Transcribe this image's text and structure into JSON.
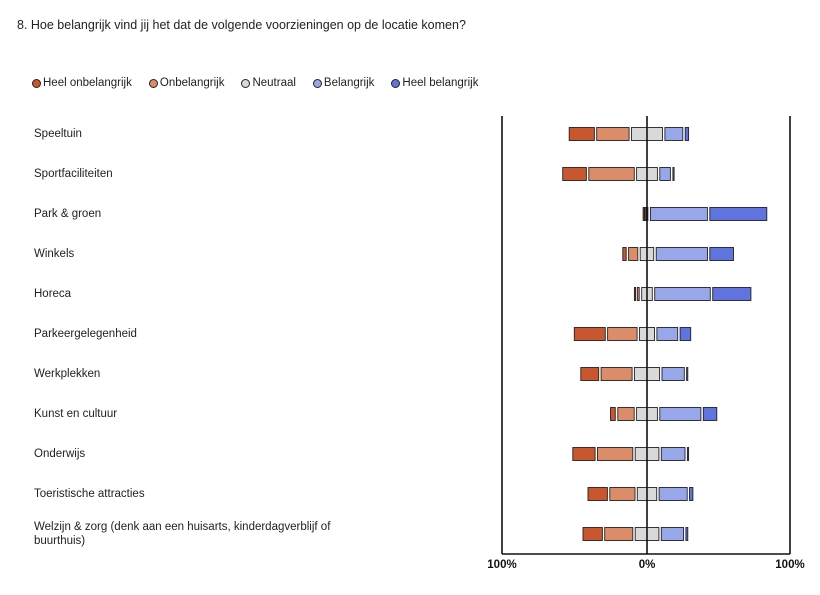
{
  "question": "8. Hoe belangrijk vind jij het dat de volgende voorzieningen op de locatie komen?",
  "chart_data": {
    "type": "bar",
    "orientation": "horizontal-diverging",
    "categories": [
      "Speeltuin",
      "Sportfaciliteiten",
      "Park & groen",
      "Winkels",
      "Horeca",
      "Parkeergelegenheid",
      "Werkplekken",
      "Kunst en cultuur",
      "Onderwijs",
      "Toeristische attracties",
      "Welzijn & zorg (denk aan een huisarts, kinderdagverblijf of buurthuis)"
    ],
    "series": [
      {
        "name": "Heel onbelangrijk",
        "color": "#c8562f",
        "values": [
          19,
          18,
          1,
          4,
          2,
          23,
          14,
          5,
          17,
          15,
          15
        ]
      },
      {
        "name": "Onbelangrijk",
        "color": "#db8c69",
        "values": [
          24,
          33,
          1,
          8,
          3,
          22,
          23,
          13,
          26,
          19,
          21
        ]
      },
      {
        "name": "Neutraal",
        "color": "#d9d9d9",
        "values": [
          23,
          16,
          3,
          11,
          9,
          12,
          19,
          16,
          18,
          15,
          18
        ]
      },
      {
        "name": "Belangrijk",
        "color": "#97a7e9",
        "values": [
          14,
          9,
          41,
          37,
          40,
          16,
          17,
          30,
          18,
          21,
          17
        ]
      },
      {
        "name": "Heel belangrijk",
        "color": "#5f74dd",
        "values": [
          4,
          2,
          41,
          18,
          28,
          9,
          2,
          11,
          2,
          4,
          3
        ]
      }
    ],
    "neutral_split": "centered",
    "xlim": [
      -100,
      100
    ],
    "x_tick_labels": [
      "100%",
      "0%",
      "100%"
    ],
    "legend_position": "top-left",
    "grid": false
  }
}
